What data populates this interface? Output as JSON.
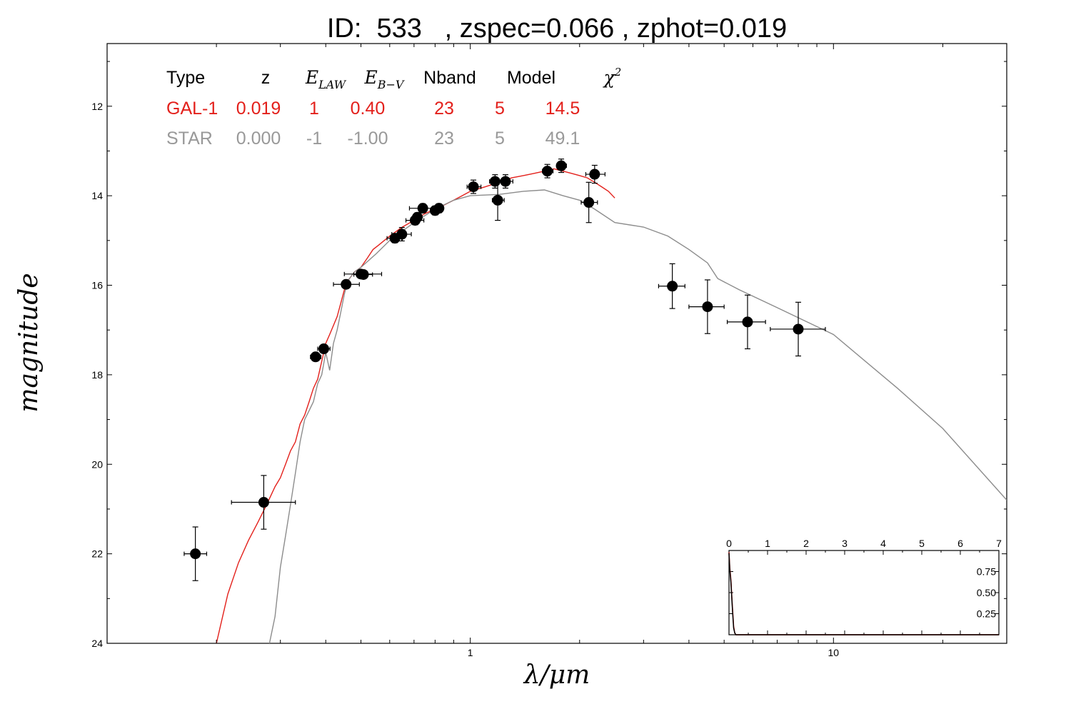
{
  "chart_data": {
    "type": "scatter",
    "title": "ID:  533   , zspec=0.066 , zphot=0.019",
    "xlabel": "λ/μm",
    "ylabel": "magnitude",
    "xscale": "log",
    "yscale": "inverted",
    "xlim": [
      0.1,
      30
    ],
    "ylim": [
      24,
      10.6
    ],
    "x_ticks": [
      1,
      10
    ],
    "x_tick_labels": [
      "1",
      "10"
    ],
    "y_ticks": [
      12,
      14,
      16,
      18,
      20,
      22,
      24
    ],
    "y_tick_labels": [
      "12",
      "14",
      "16",
      "18",
      "20",
      "22",
      "24"
    ],
    "grid": false,
    "table": {
      "headers": [
        {
          "text": "Type",
          "math": false
        },
        {
          "text": "z",
          "math": false
        },
        {
          "text": "E",
          "sub": "LAW",
          "math": true
        },
        {
          "text": "E",
          "sub": "B−V",
          "math": true
        },
        {
          "text": "Nband",
          "math": false
        },
        {
          "text": "Model",
          "math": false
        },
        {
          "text": "χ",
          "sup": "2",
          "math": true
        }
      ],
      "rows": [
        {
          "color": "#e3201b",
          "cells": [
            "GAL-1",
            "0.019",
            "1",
            "0.40",
            "23",
            "5",
            "14.5"
          ]
        },
        {
          "color": "#999999",
          "cells": [
            "STAR",
            "0.000",
            "-1",
            "-1.00",
            "23",
            "5",
            "49.1"
          ]
        }
      ]
    },
    "points": [
      {
        "x": 0.175,
        "y": 22.0,
        "xerr": [
          0.012,
          0.013
        ],
        "yerr": 0.6
      },
      {
        "x": 0.27,
        "y": 20.85,
        "xerr": [
          0.05,
          0.06
        ],
        "yerr": 0.6
      },
      {
        "x": 0.375,
        "y": 17.6,
        "xerr": [
          0.012,
          0.013
        ],
        "yerr": 0.0
      },
      {
        "x": 0.395,
        "y": 17.42,
        "xerr": [
          0.015,
          0.016
        ],
        "yerr": 0.0
      },
      {
        "x": 0.455,
        "y": 15.98,
        "xerr": [
          0.035,
          0.04
        ],
        "yerr": 0.0
      },
      {
        "x": 0.5,
        "y": 15.75,
        "xerr": [
          0.05,
          0.07
        ],
        "yerr": 0.05
      },
      {
        "x": 0.508,
        "y": 15.76,
        "xerr": [
          0.03,
          0.03
        ],
        "yerr": 0.0
      },
      {
        "x": 0.62,
        "y": 14.95,
        "xerr": [
          0.03,
          0.03
        ],
        "yerr": 0.1
      },
      {
        "x": 0.648,
        "y": 14.86,
        "xerr": [
          0.04,
          0.04
        ],
        "yerr": 0.15
      },
      {
        "x": 0.705,
        "y": 14.55,
        "xerr": [
          0.04,
          0.04
        ],
        "yerr": 0.1
      },
      {
        "x": 0.715,
        "y": 14.48,
        "xerr": [
          0.02,
          0.02
        ],
        "yerr": 0.1
      },
      {
        "x": 0.74,
        "y": 14.28,
        "xerr": [
          0.06,
          0.06
        ],
        "yerr": 0.1
      },
      {
        "x": 0.8,
        "y": 14.33,
        "xerr": [
          0.02,
          0.02
        ],
        "yerr": 0.1
      },
      {
        "x": 0.82,
        "y": 14.28,
        "xerr": [
          0.02,
          0.02
        ],
        "yerr": 0.1
      },
      {
        "x": 1.02,
        "y": 13.8,
        "xerr": [
          0.04,
          0.05
        ],
        "yerr": 0.15
      },
      {
        "x": 1.17,
        "y": 13.68,
        "xerr": [
          0.04,
          0.05
        ],
        "yerr": 0.15
      },
      {
        "x": 1.19,
        "y": 14.1,
        "xerr": [
          0.04,
          0.05
        ],
        "yerr": 0.45
      },
      {
        "x": 1.25,
        "y": 13.68,
        "xerr": [
          0.05,
          0.06
        ],
        "yerr": 0.15
      },
      {
        "x": 1.63,
        "y": 13.45,
        "xerr": [
          0.05,
          0.06
        ],
        "yerr": 0.15
      },
      {
        "x": 1.78,
        "y": 13.33,
        "xerr": [
          0.05,
          0.06
        ],
        "yerr": 0.15
      },
      {
        "x": 2.12,
        "y": 14.15,
        "xerr": [
          0.1,
          0.12
        ],
        "yerr": 0.45
      },
      {
        "x": 2.2,
        "y": 13.52,
        "xerr": [
          0.12,
          0.15
        ],
        "yerr": 0.2
      },
      {
        "x": 3.6,
        "y": 16.02,
        "xerr": [
          0.3,
          0.3
        ],
        "yerr": 0.5
      },
      {
        "x": 4.5,
        "y": 16.48,
        "xerr": [
          0.5,
          0.5
        ],
        "yerr": 0.6
      },
      {
        "x": 5.8,
        "y": 16.82,
        "xerr": [
          0.7,
          0.7
        ],
        "yerr": 0.6
      },
      {
        "x": 8.0,
        "y": 16.98,
        "xerr": [
          1.3,
          1.5
        ],
        "yerr": 0.6
      }
    ],
    "series": [
      {
        "color": "#e3201b",
        "x": [
          0.2,
          0.215,
          0.23,
          0.245,
          0.26,
          0.275,
          0.29,
          0.3,
          0.31,
          0.32,
          0.33,
          0.34,
          0.35,
          0.36,
          0.37,
          0.38,
          0.39,
          0.4,
          0.41,
          0.42,
          0.43,
          0.44,
          0.45,
          0.46,
          0.47,
          0.48,
          0.5,
          0.52,
          0.54,
          0.56,
          0.6,
          0.65,
          0.7,
          0.75,
          0.8,
          0.85,
          0.9,
          0.95,
          1.0,
          1.1,
          1.2,
          1.3,
          1.4,
          1.5,
          1.6,
          1.7,
          1.8,
          1.9,
          2.0,
          2.1,
          2.2,
          2.3,
          2.4,
          2.5
        ],
        "y": [
          24.0,
          22.9,
          22.2,
          21.7,
          21.3,
          20.9,
          20.5,
          20.3,
          20.0,
          19.7,
          19.5,
          19.1,
          18.9,
          18.6,
          18.3,
          18.1,
          17.7,
          17.3,
          17.1,
          16.9,
          16.7,
          16.4,
          16.1,
          15.9,
          15.8,
          15.7,
          15.6,
          15.4,
          15.2,
          15.1,
          14.9,
          14.7,
          14.55,
          14.4,
          14.3,
          14.2,
          14.1,
          14.0,
          13.9,
          13.8,
          13.7,
          13.6,
          13.55,
          13.5,
          13.45,
          13.4,
          13.45,
          13.5,
          13.55,
          13.6,
          13.7,
          13.8,
          13.9,
          14.05
        ]
      },
      {
        "color": "#8c8c8c",
        "x": [
          0.28,
          0.29,
          0.3,
          0.31,
          0.32,
          0.33,
          0.34,
          0.35,
          0.36,
          0.37,
          0.38,
          0.39,
          0.4,
          0.41,
          0.42,
          0.43,
          0.44,
          0.45,
          0.46,
          0.48,
          0.5,
          0.55,
          0.6,
          0.7,
          0.8,
          0.9,
          1.0,
          1.2,
          1.4,
          1.6,
          1.8,
          2.0,
          2.2,
          2.5,
          3.0,
          3.5,
          4.0,
          4.5,
          4.8,
          5.5,
          7.0,
          10.0,
          15.0,
          20.0,
          30.0
        ],
        "y": [
          24.0,
          23.4,
          22.3,
          21.6,
          20.9,
          20.2,
          19.5,
          19.0,
          18.8,
          18.6,
          18.2,
          18.0,
          17.5,
          17.9,
          17.3,
          17.0,
          16.6,
          16.2,
          15.9,
          15.7,
          15.6,
          15.3,
          15.0,
          14.6,
          14.3,
          14.1,
          14.0,
          13.97,
          13.9,
          13.87,
          14.0,
          14.1,
          14.3,
          14.6,
          14.7,
          14.9,
          15.2,
          15.5,
          15.85,
          16.1,
          16.5,
          17.1,
          18.3,
          19.2,
          20.8
        ]
      }
    ],
    "inset": {
      "xlim": [
        0,
        7
      ],
      "ylim": [
        0,
        1
      ],
      "x_ticks": [
        0,
        1,
        2,
        3,
        4,
        5,
        6,
        7
      ],
      "x_tick_labels": [
        "0",
        "1",
        "2",
        "3",
        "4",
        "5",
        "6",
        "7"
      ],
      "y_ticks": [
        0.25,
        0.5,
        0.75
      ],
      "y_tick_labels": [
        "0.25",
        "0.50",
        "0.75"
      ],
      "series": [
        {
          "color": "#e3201b",
          "x": [
            0,
            0.02,
            0.05,
            0.08,
            0.1,
            0.12,
            0.15,
            0.18,
            1,
            2,
            3,
            4,
            5,
            6,
            7
          ],
          "y": [
            0.98,
            0.8,
            0.65,
            0.4,
            0.25,
            0.1,
            0.02,
            0.0,
            0.0,
            0.0,
            0.0,
            0.0,
            0.0,
            0.0,
            0.0
          ]
        },
        {
          "color": "#000000",
          "x": [
            0,
            0.02,
            0.05,
            0.08,
            0.1,
            0.12,
            0.15,
            0.18,
            1,
            2,
            3,
            4,
            5,
            6,
            7
          ],
          "y": [
            0.97,
            0.78,
            0.62,
            0.38,
            0.22,
            0.08,
            0.02,
            0.0,
            0.0,
            0.0,
            0.0,
            0.0,
            0.0,
            0.0,
            0.0
          ]
        }
      ]
    }
  }
}
